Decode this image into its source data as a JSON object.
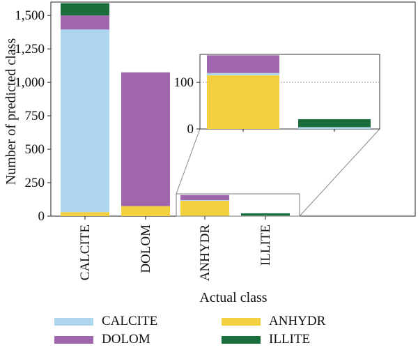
{
  "chart_data": {
    "type": "bar",
    "stacked": true,
    "xlabel": "Actual class",
    "ylabel": "Number of predicted class",
    "categories": [
      "CALCITE",
      "DOLOM",
      "ANHYDR",
      "ILLITE"
    ],
    "series": [
      {
        "name": "ANHYDR",
        "color": "#f3d03e",
        "values": [
          30,
          75,
          115,
          0
        ]
      },
      {
        "name": "CALCITE",
        "color": "#aed6ef",
        "values": [
          1365,
          0,
          5,
          4
        ]
      },
      {
        "name": "DOLOM",
        "color": "#a066ad",
        "values": [
          105,
          1000,
          38,
          0
        ]
      },
      {
        "name": "ILLITE",
        "color": "#1a6e3c",
        "values": [
          92,
          0,
          0,
          17
        ]
      }
    ],
    "ylim": [
      0,
      1600
    ],
    "yticks": [
      0,
      250,
      500,
      750,
      1000,
      1250,
      1500
    ],
    "grid": false,
    "legend": {
      "placement": "bottom",
      "entries": [
        "CALCITE",
        "ANHYDR",
        "DOLOM",
        "ILLITE"
      ]
    },
    "inset": {
      "categories": [
        "ANHYDR",
        "ILLITE"
      ],
      "ylim": [
        0,
        160
      ],
      "yticks": [
        0,
        100
      ],
      "reference_line": 100
    }
  }
}
